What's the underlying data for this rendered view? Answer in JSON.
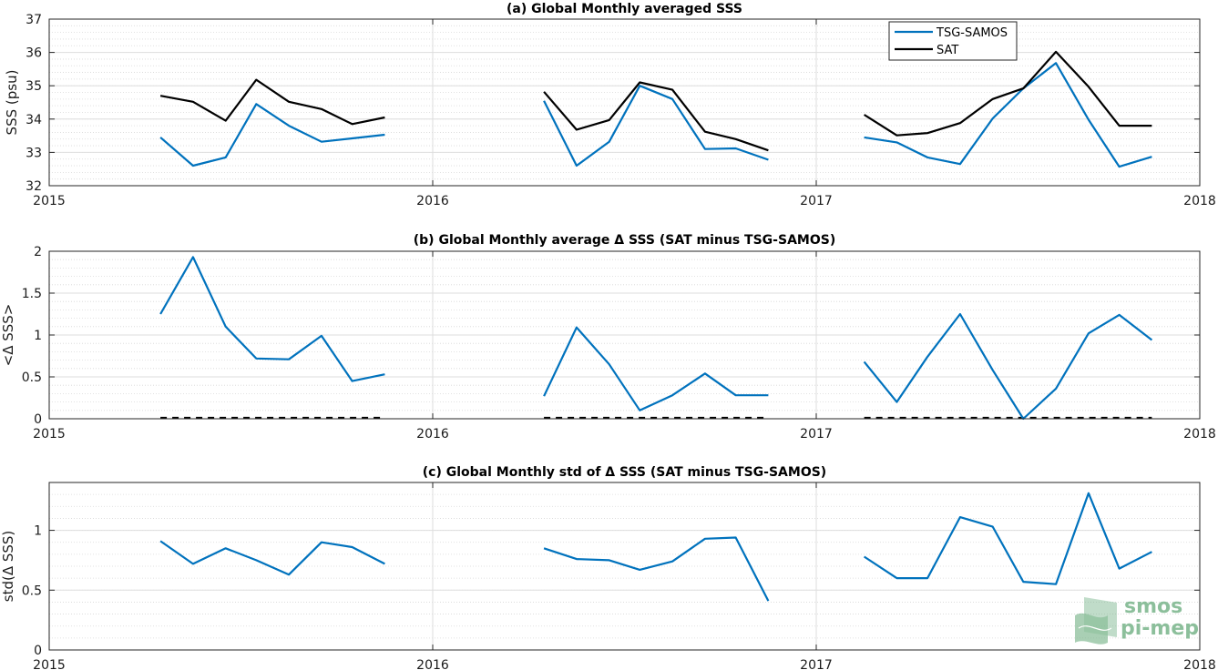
{
  "chart_data": [
    {
      "type": "line",
      "title": "(a) Global Monthly averaged SSS",
      "ylabel": "SSS (psu)",
      "xlabel": "",
      "xlim": [
        2015,
        2018
      ],
      "x_ticks": [
        "2015",
        "2016",
        "2017",
        "2018"
      ],
      "ylim": [
        32,
        37
      ],
      "y_ticks": [
        "32",
        "33",
        "34",
        "35",
        "36",
        "37"
      ],
      "grid": true,
      "legend": {
        "position": "top-right",
        "entries": [
          "TSG-SAMOS",
          "SAT"
        ]
      },
      "series": [
        {
          "name": "TSG-SAMOS",
          "color": "#0072bd",
          "segments": [
            [
              [
                2015.29,
                33.45
              ],
              [
                2015.375,
                32.6
              ],
              [
                2015.46,
                32.85
              ],
              [
                2015.54,
                34.45
              ],
              [
                2015.625,
                33.8
              ],
              [
                2015.71,
                33.32
              ],
              [
                2015.79,
                33.42
              ],
              [
                2015.875,
                33.53
              ]
            ],
            [
              [
                2016.29,
                34.55
              ],
              [
                2016.375,
                32.6
              ],
              [
                2016.46,
                33.32
              ],
              [
                2016.54,
                35.0
              ],
              [
                2016.625,
                34.6
              ],
              [
                2016.71,
                33.1
              ],
              [
                2016.79,
                33.12
              ],
              [
                2016.875,
                32.78
              ]
            ],
            [
              [
                2017.125,
                33.45
              ],
              [
                2017.21,
                33.3
              ],
              [
                2017.29,
                32.85
              ],
              [
                2017.375,
                32.65
              ],
              [
                2017.46,
                34.02
              ],
              [
                2017.54,
                34.92
              ],
              [
                2017.625,
                35.68
              ],
              [
                2017.71,
                33.98
              ],
              [
                2017.79,
                32.57
              ],
              [
                2017.875,
                32.87
              ]
            ]
          ]
        },
        {
          "name": "SAT",
          "color": "#000000",
          "segments": [
            [
              [
                2015.29,
                34.7
              ],
              [
                2015.375,
                34.52
              ],
              [
                2015.46,
                33.95
              ],
              [
                2015.54,
                35.18
              ],
              [
                2015.625,
                34.52
              ],
              [
                2015.71,
                34.3
              ],
              [
                2015.79,
                33.85
              ],
              [
                2015.875,
                34.05
              ]
            ],
            [
              [
                2016.29,
                34.82
              ],
              [
                2016.375,
                33.68
              ],
              [
                2016.46,
                33.97
              ],
              [
                2016.54,
                35.1
              ],
              [
                2016.625,
                34.88
              ],
              [
                2016.71,
                33.62
              ],
              [
                2016.79,
                33.4
              ],
              [
                2016.875,
                33.06
              ]
            ],
            [
              [
                2017.125,
                34.13
              ],
              [
                2017.21,
                33.51
              ],
              [
                2017.29,
                33.58
              ],
              [
                2017.375,
                33.88
              ],
              [
                2017.46,
                34.6
              ],
              [
                2017.54,
                34.92
              ],
              [
                2017.625,
                36.02
              ],
              [
                2017.71,
                34.97
              ],
              [
                2017.79,
                33.8
              ],
              [
                2017.875,
                33.8
              ]
            ]
          ]
        }
      ]
    },
    {
      "type": "line",
      "title": "(b) Global Monthly average Δ SSS (SAT minus TSG-SAMOS)",
      "ylabel": "<Δ SSS>",
      "xlabel": "",
      "xlim": [
        2015,
        2018
      ],
      "x_ticks": [
        "2015",
        "2016",
        "2017",
        "2018"
      ],
      "ylim": [
        0,
        2
      ],
      "y_ticks": [
        "0",
        "0.5",
        "1",
        "1.5",
        "2"
      ],
      "grid": true,
      "series": [
        {
          "color": "#0072bd",
          "segments": [
            [
              [
                2015.29,
                1.25
              ],
              [
                2015.375,
                1.93
              ],
              [
                2015.46,
                1.1
              ],
              [
                2015.54,
                0.72
              ],
              [
                2015.625,
                0.71
              ],
              [
                2015.71,
                0.99
              ],
              [
                2015.79,
                0.45
              ],
              [
                2015.875,
                0.53
              ]
            ],
            [
              [
                2016.29,
                0.27
              ],
              [
                2016.375,
                1.09
              ],
              [
                2016.46,
                0.65
              ],
              [
                2016.54,
                0.1
              ],
              [
                2016.625,
                0.28
              ],
              [
                2016.71,
                0.54
              ],
              [
                2016.79,
                0.28
              ],
              [
                2016.875,
                0.28
              ]
            ],
            [
              [
                2017.125,
                0.68
              ],
              [
                2017.21,
                0.2
              ],
              [
                2017.29,
                0.74
              ],
              [
                2017.375,
                1.25
              ],
              [
                2017.46,
                0.58
              ],
              [
                2017.54,
                0.0
              ],
              [
                2017.625,
                0.36
              ],
              [
                2017.71,
                1.02
              ],
              [
                2017.79,
                1.24
              ],
              [
                2017.875,
                0.94
              ]
            ]
          ]
        }
      ],
      "zero_lines": [
        [
          2015.29,
          2015.875
        ],
        [
          2016.29,
          2016.875
        ],
        [
          2017.125,
          2017.875
        ]
      ]
    },
    {
      "type": "line",
      "title": "(c) Global Monthly std of Δ SSS (SAT minus TSG-SAMOS)",
      "ylabel": "std(Δ SSS)",
      "xlabel": "",
      "xlim": [
        2015,
        2018
      ],
      "x_ticks": [
        "2015",
        "2016",
        "2017",
        "2018"
      ],
      "ylim": [
        0,
        1.4
      ],
      "y_ticks": [
        "0",
        "0.5",
        "1"
      ],
      "grid": true,
      "series": [
        {
          "color": "#0072bd",
          "segments": [
            [
              [
                2015.29,
                0.91
              ],
              [
                2015.375,
                0.72
              ],
              [
                2015.46,
                0.85
              ],
              [
                2015.54,
                0.75
              ],
              [
                2015.625,
                0.63
              ],
              [
                2015.71,
                0.9
              ],
              [
                2015.79,
                0.86
              ],
              [
                2015.875,
                0.72
              ]
            ],
            [
              [
                2016.29,
                0.85
              ],
              [
                2016.375,
                0.76
              ],
              [
                2016.46,
                0.75
              ],
              [
                2016.54,
                0.67
              ],
              [
                2016.625,
                0.74
              ],
              [
                2016.71,
                0.93
              ],
              [
                2016.79,
                0.94
              ],
              [
                2016.875,
                0.41
              ]
            ],
            [
              [
                2017.125,
                0.78
              ],
              [
                2017.21,
                0.6
              ],
              [
                2017.29,
                0.6
              ],
              [
                2017.375,
                1.11
              ],
              [
                2017.46,
                1.03
              ],
              [
                2017.54,
                0.57
              ],
              [
                2017.625,
                0.55
              ],
              [
                2017.71,
                1.31
              ],
              [
                2017.79,
                0.68
              ],
              [
                2017.875,
                0.82
              ]
            ]
          ]
        }
      ]
    }
  ],
  "logo": {
    "line1": "smos",
    "line2": "pi-mep",
    "color": "#78b48a"
  }
}
